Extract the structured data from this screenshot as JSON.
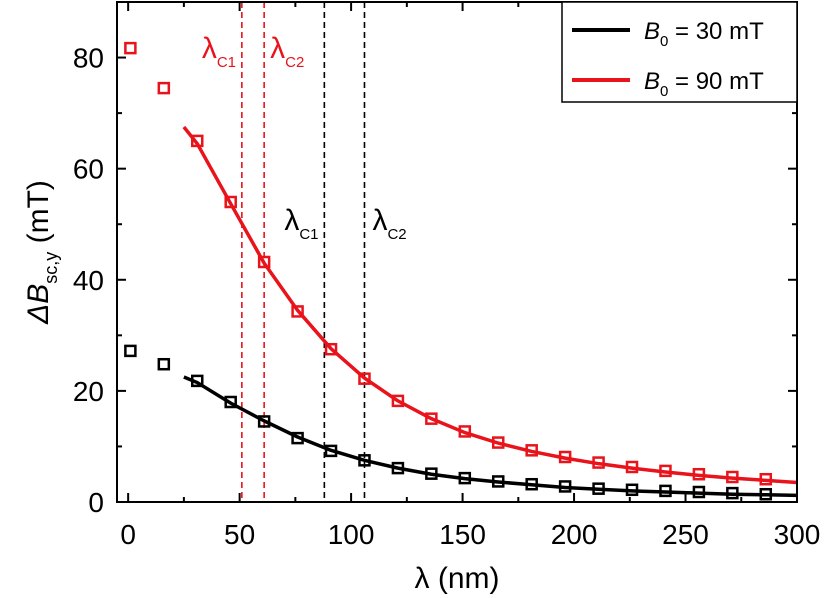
{
  "chart_data": {
    "type": "scatter",
    "xlabel": "λ (nm)",
    "ylabel_prefix": "ΔB",
    "ylabel_sub": "sc,y",
    "ylabel_unit": "(mT)",
    "xlim": [
      -5,
      300
    ],
    "ylim": [
      0,
      90
    ],
    "xticks": [
      0,
      50,
      100,
      150,
      200,
      250,
      300
    ],
    "yticks": [
      0,
      20,
      40,
      60,
      80
    ],
    "grid": false,
    "legend": "top-right",
    "series": [
      {
        "name_main": "B",
        "name_sub": "0",
        "name_rest": " = 30 mT",
        "color": "#000000",
        "points_x": [
          1,
          16,
          31,
          46,
          61,
          76,
          91,
          106,
          121,
          136,
          151,
          166,
          181,
          196,
          211,
          226,
          241,
          256,
          271,
          286
        ],
        "points_y": [
          27.2,
          24.8,
          21.8,
          18,
          14.5,
          11.5,
          9.2,
          7.5,
          6.1,
          5.1,
          4.3,
          3.7,
          3.2,
          2.8,
          2.4,
          2.2,
          2.0,
          1.8,
          1.6,
          1.4
        ],
        "fit_x": [
          25,
          31,
          46,
          61,
          76,
          91,
          106,
          121,
          136,
          151,
          166,
          181,
          196,
          211,
          226,
          241,
          256,
          271,
          286,
          300
        ],
        "fit_y": [
          22.5,
          21.5,
          17.8,
          14.6,
          11.7,
          9.3,
          7.5,
          6.1,
          5.0,
          4.2,
          3.6,
          3.1,
          2.6,
          2.3,
          2.0,
          1.8,
          1.6,
          1.4,
          1.3,
          1.2
        ]
      },
      {
        "name_main": "B",
        "name_sub": "0",
        "name_rest": " = 90 mT",
        "color": "#e8131b",
        "points_x": [
          1,
          16,
          31,
          46,
          61,
          76,
          91,
          106,
          121,
          136,
          151,
          166,
          181,
          196,
          211,
          226,
          241,
          256,
          271,
          286
        ],
        "points_y": [
          81.7,
          74.5,
          65,
          54,
          43.2,
          34.3,
          27.5,
          22.2,
          18.2,
          15,
          12.7,
          10.7,
          9.3,
          8.1,
          7.1,
          6.3,
          5.6,
          5.0,
          4.5,
          4.1
        ],
        "fit_x": [
          25,
          31,
          46,
          61,
          76,
          91,
          106,
          121,
          136,
          151,
          166,
          181,
          196,
          211,
          226,
          241,
          256,
          271,
          286,
          300
        ],
        "fit_y": [
          67.5,
          64.5,
          53.7,
          43.0,
          34.5,
          27.6,
          22.3,
          18.2,
          15.0,
          12.5,
          10.6,
          9.1,
          7.9,
          6.9,
          6.1,
          5.4,
          4.8,
          4.3,
          3.9,
          3.5
        ]
      }
    ],
    "vlines": [
      {
        "x": 51,
        "color": "#e8131b",
        "label_main": "λ",
        "label_sub": "C1"
      },
      {
        "x": 61,
        "color": "#e8131b",
        "label_main": "λ",
        "label_sub": "C2"
      },
      {
        "x": 88,
        "color": "#000000",
        "label_main": "λ",
        "label_sub": "C1"
      },
      {
        "x": 106,
        "color": "#000000",
        "label_main": "λ",
        "label_sub": "C2"
      }
    ]
  }
}
